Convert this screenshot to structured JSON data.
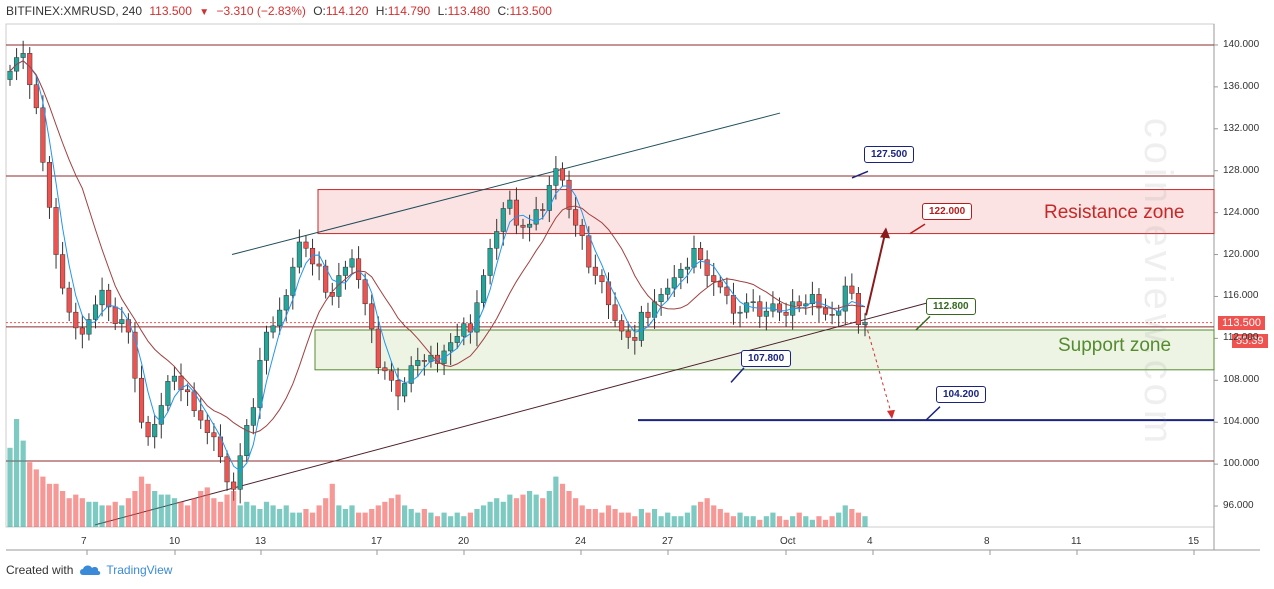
{
  "header": {
    "symbol": "BITFINEX:XMRUSD, 240",
    "last": "113.500",
    "change": "−3.310 (−2.83%)",
    "open_label": "O:",
    "open": "114.120",
    "high_label": "H:",
    "high": "114.790",
    "low_label": "L:",
    "low": "113.480",
    "close_label": "C:",
    "close": "113.500"
  },
  "footer": {
    "created_with": "Created with",
    "brand": "TradingView"
  },
  "watermark": "coinreview.com",
  "colors": {
    "up": "#26a69a",
    "down": "#ef5350",
    "resistance": "#c62828",
    "support": "#558b2f",
    "target": "#1a237e"
  },
  "chart_data": {
    "type": "candlestick",
    "title": "",
    "y_axis": {
      "min": 94,
      "max": 142,
      "ticks": [
        "96.000",
        "100.000",
        "104.000",
        "108.000",
        "112.000",
        "116.000",
        "120.000",
        "124.000",
        "128.000",
        "132.000",
        "136.000",
        "140.000"
      ]
    },
    "x_axis": {
      "ticks": [
        "7",
        "10",
        "13",
        "17",
        "20",
        "24",
        "27",
        "Oct",
        "4",
        "8",
        "11",
        "15"
      ]
    },
    "current_price": "113.500",
    "countdown": "55:39",
    "horizontal_levels": [
      140.0,
      127.5,
      100.3,
      113.1
    ],
    "zones": [
      {
        "label": "Resistance zone",
        "from": 122.0,
        "to": 126.2
      },
      {
        "label": "Support zone",
        "from": 109.0,
        "to": 112.8
      }
    ],
    "callouts": [
      {
        "value": "127.500"
      },
      {
        "value": "122.000"
      },
      {
        "value": "112.800"
      },
      {
        "value": "107.800"
      },
      {
        "value": "104.200"
      }
    ],
    "target_line": 104.2,
    "closes": [
      137.5,
      138.8,
      139.2,
      136.2,
      134.0,
      128.8,
      124.5,
      120.0,
      116.8,
      114.5,
      113.0,
      112.4,
      113.8,
      115.2,
      116.6,
      115.0,
      113.4,
      113.8,
      112.6,
      108.2,
      104.0,
      102.6,
      103.8,
      105.6,
      107.9,
      108.4,
      107.1,
      106.9,
      105.1,
      104.2,
      103.0,
      102.6,
      100.7,
      98.3,
      97.6,
      100.8,
      103.7,
      105.4,
      109.9,
      112.6,
      113.2,
      114.7,
      116.1,
      118.8,
      121.2,
      120.6,
      119.1,
      118.9,
      116.4,
      116.0,
      118.0,
      118.8,
      119.6,
      117.6,
      115.3,
      112.9,
      109.2,
      108.9,
      108.0,
      106.5,
      107.7,
      109.4,
      109.9,
      109.8,
      110.4,
      109.6,
      110.8,
      111.6,
      112.2,
      113.4,
      112.6,
      115.4,
      118.0,
      120.6,
      122.2,
      124.4,
      125.2,
      122.8,
      122.6,
      122.9,
      124.3,
      124.2,
      126.6,
      128.2,
      127.1,
      124.3,
      122.8,
      121.8,
      118.8,
      118.0,
      117.4,
      115.2,
      113.7,
      112.7,
      112.1,
      111.8,
      114.5,
      114.0,
      115.5,
      116.2,
      116.8,
      117.8,
      118.6,
      118.8,
      120.6,
      119.5,
      118.0,
      117.4,
      116.9,
      116.1,
      114.4,
      114.5,
      115.4,
      115.5,
      114.1,
      114.6,
      115.3,
      114.5,
      114.2,
      115.5,
      115.1,
      115.3,
      116.2,
      114.9,
      114.3,
      114.2,
      114.6,
      117.0,
      116.3,
      113.3,
      113.5
    ],
    "volumes": [
      22,
      30,
      24,
      18,
      16,
      14,
      12,
      12,
      10,
      8,
      9,
      8,
      7,
      7,
      6,
      6,
      7,
      6,
      8,
      10,
      14,
      12,
      10,
      9,
      9,
      8,
      7,
      6,
      8,
      10,
      11,
      8,
      7,
      9,
      10,
      6,
      7,
      6,
      5,
      7,
      6,
      5,
      6,
      4,
      4,
      5,
      4,
      6,
      8,
      12,
      6,
      5,
      6,
      4,
      4,
      5,
      6,
      7,
      8,
      9,
      6,
      5,
      4,
      5,
      4,
      3,
      4,
      3,
      4,
      3,
      4,
      5,
      6,
      7,
      8,
      7,
      9,
      8,
      9,
      10,
      9,
      8,
      10,
      14,
      12,
      10,
      8,
      6,
      5,
      5,
      4,
      6,
      5,
      4,
      4,
      3,
      5,
      4,
      5,
      3,
      4,
      3,
      3,
      4,
      6,
      7,
      8,
      6,
      5,
      4,
      3,
      4,
      3,
      3,
      2,
      3,
      4,
      3,
      2,
      3,
      4,
      3,
      2,
      3,
      2,
      3,
      4,
      6,
      5,
      4,
      3
    ]
  }
}
